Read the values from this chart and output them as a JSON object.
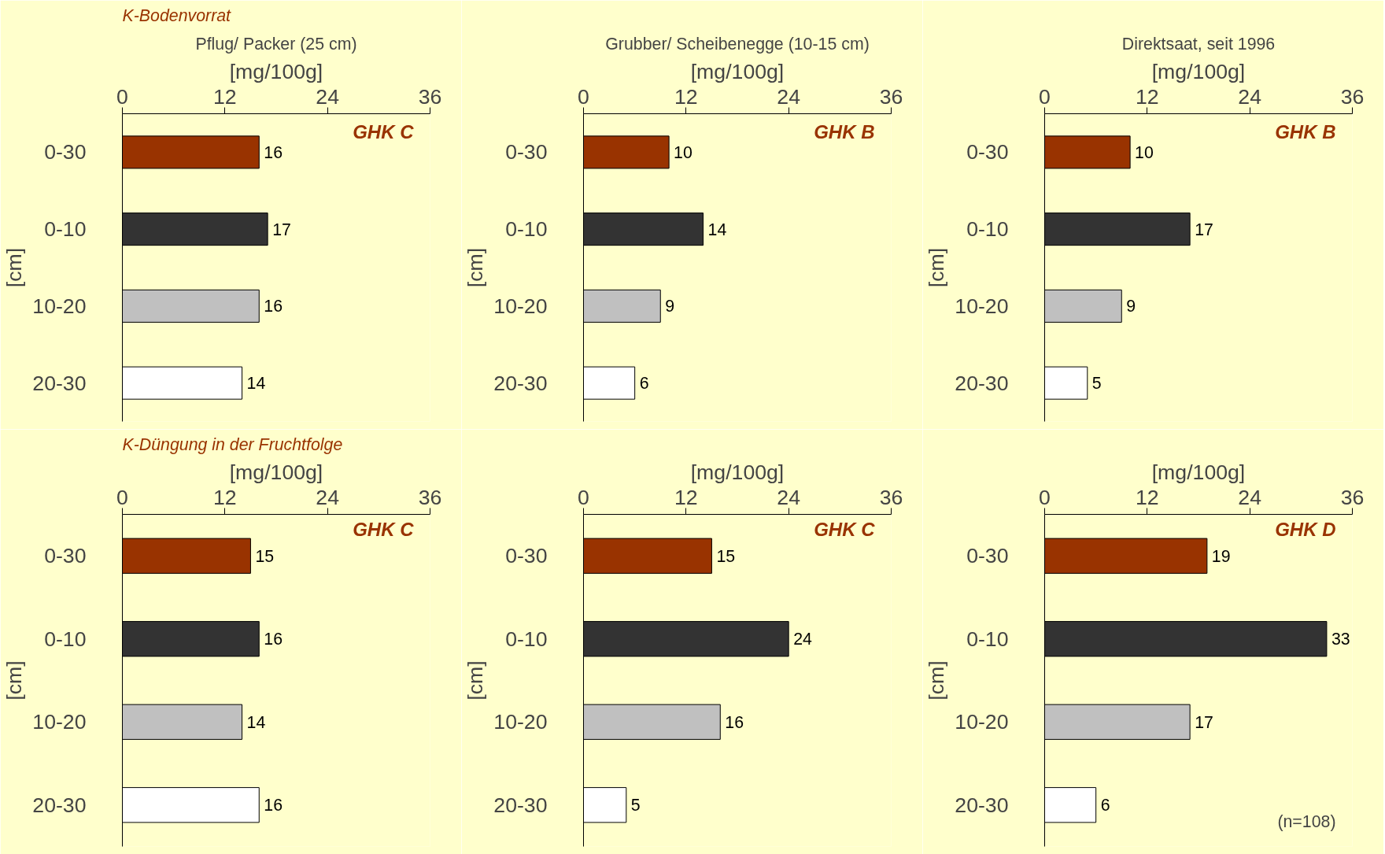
{
  "chart_data": [
    {
      "type": "bar",
      "orientation": "horizontal",
      "title": "Pflug/ Packer (25 cm)",
      "subtitle": "K-Bodenvorrat",
      "xlabel": "[mg/100g]",
      "ylabel": "[cm]",
      "categories": [
        "0-30",
        "0-10",
        "10-20",
        "20-30"
      ],
      "values": [
        16,
        17,
        16,
        14
      ],
      "colors": [
        "#993300",
        "#333333",
        "#c0c0c0",
        "#ffffff"
      ],
      "xlim": [
        0,
        36
      ],
      "xticks": [
        0,
        12,
        24,
        36
      ],
      "data_labels": true,
      "annotations": [
        "GHK C"
      ]
    },
    {
      "type": "bar",
      "orientation": "horizontal",
      "title": "Grubber/ Scheibenegge (10-15 cm)",
      "xlabel": "[mg/100g]",
      "ylabel": "[cm]",
      "categories": [
        "0-30",
        "0-10",
        "10-20",
        "20-30"
      ],
      "values": [
        10,
        14,
        9,
        6
      ],
      "colors": [
        "#993300",
        "#333333",
        "#c0c0c0",
        "#ffffff"
      ],
      "xlim": [
        0,
        36
      ],
      "xticks": [
        0,
        12,
        24,
        36
      ],
      "data_labels": true,
      "annotations": [
        "GHK B"
      ]
    },
    {
      "type": "bar",
      "orientation": "horizontal",
      "title": "Direktsaat, seit 1996",
      "xlabel": "[mg/100g]",
      "ylabel": "[cm]",
      "categories": [
        "0-30",
        "0-10",
        "10-20",
        "20-30"
      ],
      "values": [
        10,
        17,
        9,
        5
      ],
      "colors": [
        "#993300",
        "#333333",
        "#c0c0c0",
        "#ffffff"
      ],
      "xlim": [
        0,
        36
      ],
      "xticks": [
        0,
        12,
        24,
        36
      ],
      "data_labels": true,
      "annotations": [
        "GHK B"
      ]
    },
    {
      "type": "bar",
      "orientation": "horizontal",
      "subtitle": "K-Düngung in der Fruchtfolge",
      "xlabel": "[mg/100g]",
      "ylabel": "[cm]",
      "categories": [
        "0-30",
        "0-10",
        "10-20",
        "20-30"
      ],
      "values": [
        15,
        16,
        14,
        16
      ],
      "colors": [
        "#993300",
        "#333333",
        "#c0c0c0",
        "#ffffff"
      ],
      "xlim": [
        0,
        36
      ],
      "xticks": [
        0,
        12,
        24,
        36
      ],
      "data_labels": true,
      "annotations": [
        "GHK C"
      ]
    },
    {
      "type": "bar",
      "orientation": "horizontal",
      "xlabel": "[mg/100g]",
      "ylabel": "[cm]",
      "categories": [
        "0-30",
        "0-10",
        "10-20",
        "20-30"
      ],
      "values": [
        15,
        24,
        16,
        5
      ],
      "colors": [
        "#993300",
        "#333333",
        "#c0c0c0",
        "#ffffff"
      ],
      "xlim": [
        0,
        36
      ],
      "xticks": [
        0,
        12,
        24,
        36
      ],
      "data_labels": true,
      "annotations": [
        "GHK C"
      ]
    },
    {
      "type": "bar",
      "orientation": "horizontal",
      "xlabel": "[mg/100g]",
      "ylabel": "[cm]",
      "categories": [
        "0-30",
        "0-10",
        "10-20",
        "20-30"
      ],
      "values": [
        19,
        33,
        17,
        6
      ],
      "colors": [
        "#993300",
        "#333333",
        "#c0c0c0",
        "#ffffff"
      ],
      "xlim": [
        0,
        36
      ],
      "xticks": [
        0,
        12,
        24,
        36
      ],
      "data_labels": true,
      "annotations": [
        "GHK D",
        "(n=108)"
      ]
    }
  ]
}
